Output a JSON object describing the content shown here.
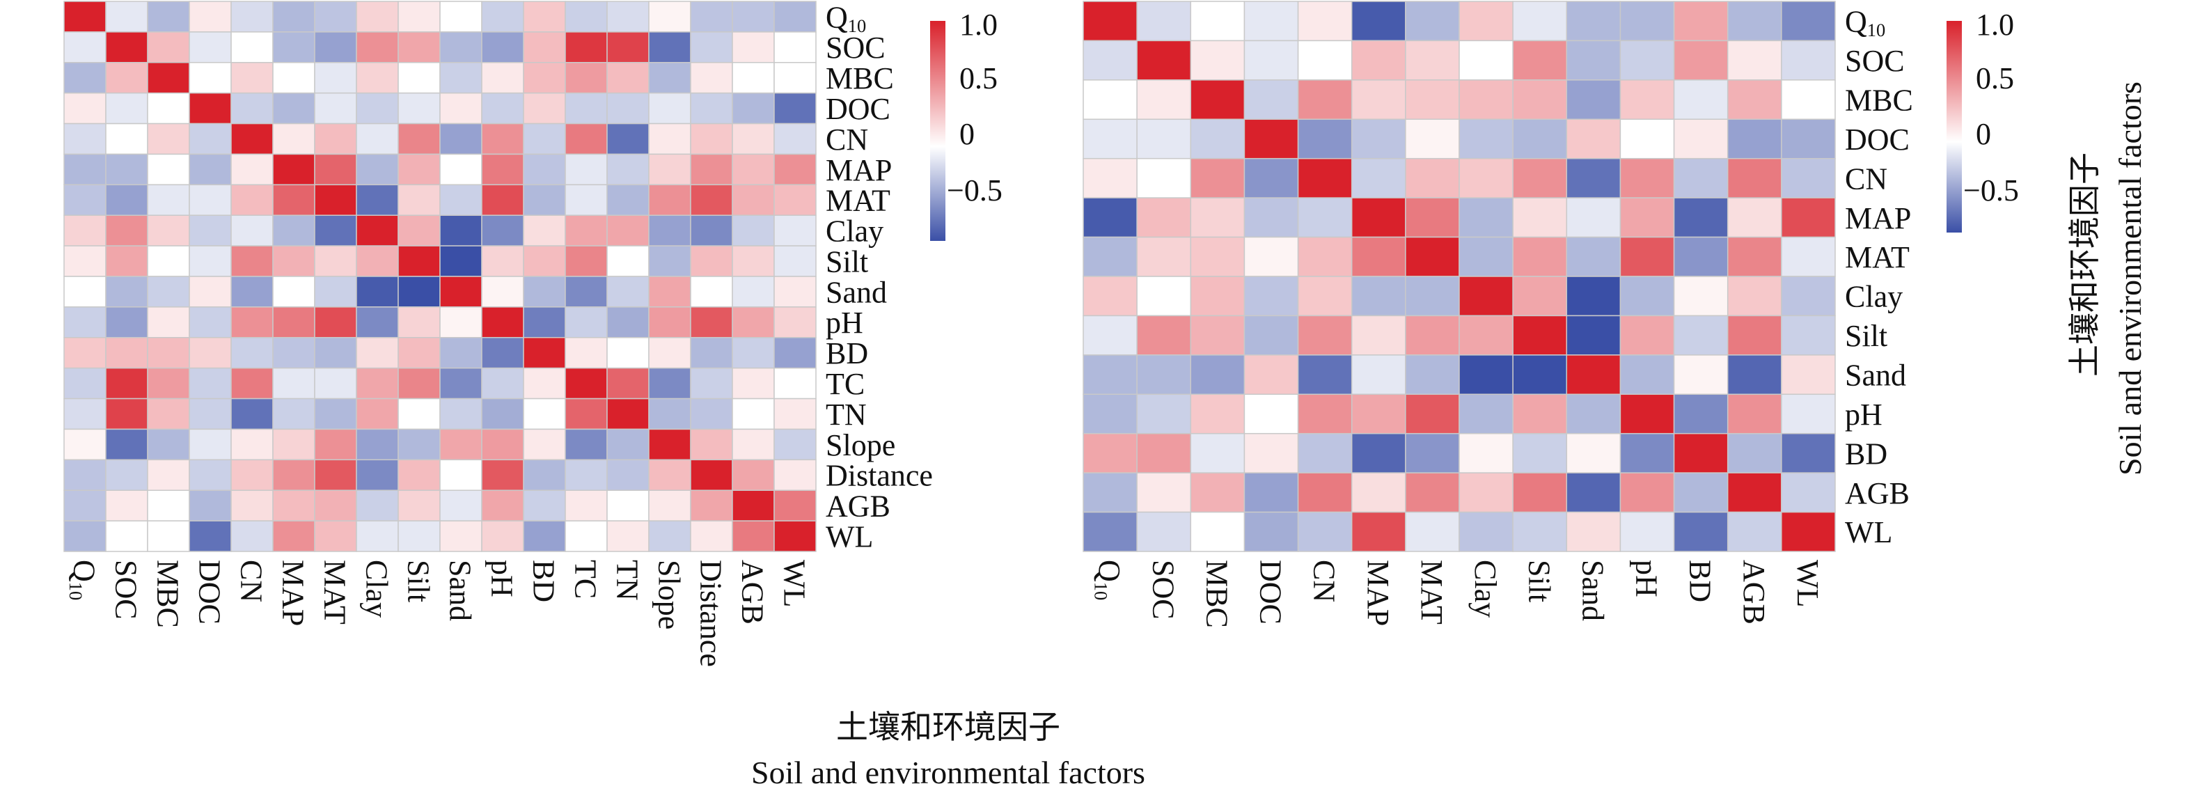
{
  "figure": {
    "xlabel_cn": "土壤和环境因子",
    "xlabel_en": "Soil and environmental factors",
    "side_label_cn": "土壤和环境因子",
    "side_label_en": "Soil and environmental factors"
  },
  "colors": {
    "negative": "#3a4fa6",
    "neutral": "#ffffff",
    "positive": "#d9212b"
  },
  "chart_data": [
    {
      "type": "heatmap",
      "title": "",
      "xlabel": "",
      "ylabel": "",
      "vmin": -0.75,
      "vmax": 1.0,
      "colorbar_ticks": [
        {
          "value": 1.0,
          "label": "1.0"
        },
        {
          "value": 0.5,
          "label": "0.5"
        },
        {
          "value": 0,
          "label": "0"
        },
        {
          "value": -0.5,
          "label": "−0.5"
        }
      ],
      "labels": [
        "Q10",
        "SOC",
        "MBC",
        "DOC",
        "CN",
        "MAP",
        "MAT",
        "Clay",
        "Silt",
        "Sand",
        "pH",
        "BD",
        "TC",
        "TN",
        "Slope",
        "Distance",
        "AGB",
        "WL"
      ],
      "matrix": [
        [
          1.0,
          -0.1,
          -0.3,
          0.1,
          -0.15,
          -0.3,
          -0.25,
          0.2,
          0.1,
          0.0,
          -0.2,
          0.25,
          -0.2,
          -0.15,
          0.05,
          -0.25,
          -0.25,
          -0.3
        ],
        [
          -0.1,
          1.0,
          0.3,
          -0.1,
          0.0,
          -0.3,
          -0.4,
          0.5,
          0.4,
          -0.3,
          -0.4,
          0.3,
          0.9,
          0.85,
          -0.6,
          -0.2,
          0.1,
          0.0
        ],
        [
          -0.3,
          0.3,
          1.0,
          0.0,
          0.2,
          0.0,
          -0.1,
          0.2,
          0.0,
          -0.2,
          0.1,
          0.3,
          0.45,
          0.3,
          -0.3,
          0.1,
          0.0,
          0.0
        ],
        [
          0.1,
          -0.1,
          0.0,
          1.0,
          -0.2,
          -0.3,
          -0.1,
          -0.2,
          -0.1,
          0.1,
          -0.2,
          0.2,
          -0.2,
          -0.2,
          -0.1,
          -0.2,
          -0.3,
          -0.6
        ],
        [
          -0.15,
          0.0,
          0.2,
          -0.2,
          1.0,
          0.1,
          0.3,
          -0.1,
          0.55,
          -0.4,
          0.5,
          -0.2,
          0.6,
          -0.6,
          0.1,
          0.25,
          0.15,
          -0.15
        ],
        [
          -0.3,
          -0.3,
          0.0,
          -0.3,
          0.1,
          1.0,
          0.7,
          -0.3,
          0.35,
          0.0,
          0.6,
          -0.25,
          -0.1,
          -0.2,
          0.2,
          0.5,
          0.3,
          0.5
        ],
        [
          -0.25,
          -0.4,
          -0.1,
          -0.1,
          0.3,
          0.7,
          1.0,
          -0.6,
          0.2,
          -0.2,
          0.8,
          -0.3,
          -0.1,
          -0.3,
          0.5,
          0.75,
          0.35,
          0.3
        ],
        [
          0.2,
          0.5,
          0.2,
          -0.2,
          -0.1,
          -0.3,
          -0.6,
          1.0,
          0.35,
          -0.7,
          -0.5,
          0.15,
          0.4,
          0.4,
          -0.4,
          -0.5,
          -0.2,
          -0.1
        ],
        [
          0.1,
          0.4,
          0.0,
          -0.1,
          0.55,
          0.35,
          0.2,
          0.35,
          1.0,
          -0.85,
          0.2,
          0.3,
          0.55,
          0.0,
          -0.3,
          0.3,
          0.2,
          -0.1
        ],
        [
          0.0,
          -0.3,
          -0.2,
          0.1,
          -0.4,
          0.0,
          -0.2,
          -0.7,
          -0.85,
          1.0,
          0.05,
          -0.3,
          -0.5,
          -0.2,
          0.4,
          0.0,
          -0.1,
          0.1
        ],
        [
          -0.2,
          -0.4,
          0.1,
          -0.2,
          0.5,
          0.6,
          0.8,
          -0.5,
          0.2,
          0.05,
          1.0,
          -0.55,
          -0.2,
          -0.35,
          0.45,
          0.75,
          0.4,
          0.2
        ],
        [
          0.25,
          0.3,
          0.3,
          0.2,
          -0.2,
          -0.25,
          -0.3,
          0.15,
          0.3,
          -0.3,
          -0.55,
          1.0,
          0.1,
          0.0,
          0.1,
          -0.3,
          -0.2,
          -0.4
        ],
        [
          -0.2,
          0.9,
          0.45,
          -0.2,
          0.6,
          -0.1,
          -0.1,
          0.4,
          0.55,
          -0.5,
          -0.2,
          0.1,
          1.0,
          0.7,
          -0.5,
          -0.2,
          0.1,
          0.0
        ],
        [
          -0.15,
          0.85,
          0.3,
          -0.2,
          -0.6,
          -0.2,
          -0.3,
          0.4,
          0.0,
          -0.2,
          -0.35,
          0.0,
          0.7,
          1.0,
          -0.3,
          -0.25,
          0.0,
          0.1
        ],
        [
          0.05,
          -0.6,
          -0.3,
          -0.1,
          0.1,
          0.2,
          0.5,
          -0.4,
          -0.3,
          0.4,
          0.45,
          0.1,
          -0.5,
          -0.3,
          1.0,
          0.3,
          0.1,
          -0.2
        ],
        [
          -0.25,
          -0.2,
          0.1,
          -0.2,
          0.25,
          0.5,
          0.75,
          -0.5,
          0.3,
          0.0,
          0.75,
          -0.3,
          -0.2,
          -0.25,
          0.3,
          1.0,
          0.4,
          0.1
        ],
        [
          -0.25,
          0.1,
          0.0,
          -0.3,
          0.15,
          0.3,
          0.35,
          -0.2,
          0.2,
          -0.1,
          0.4,
          -0.2,
          0.1,
          0.0,
          0.1,
          0.4,
          1.0,
          0.6
        ],
        [
          -0.3,
          0.0,
          0.0,
          -0.6,
          -0.15,
          0.5,
          0.3,
          -0.1,
          -0.1,
          0.1,
          0.2,
          -0.4,
          0.0,
          0.1,
          -0.2,
          0.1,
          0.6,
          1.0
        ]
      ]
    },
    {
      "type": "heatmap",
      "title": "",
      "xlabel": "",
      "ylabel": "",
      "vmin": -0.75,
      "vmax": 1.0,
      "colorbar_ticks": [
        {
          "value": 1.0,
          "label": "1.0"
        },
        {
          "value": 0.5,
          "label": "0.5"
        },
        {
          "value": 0,
          "label": "0"
        },
        {
          "value": -0.5,
          "label": "−0.5"
        }
      ],
      "labels": [
        "Q10",
        "SOC",
        "MBC",
        "DOC",
        "CN",
        "MAP",
        "MAT",
        "Clay",
        "Silt",
        "Sand",
        "pH",
        "BD",
        "AGB",
        "WL"
      ],
      "matrix": [
        [
          1.0,
          -0.15,
          0.0,
          -0.1,
          0.1,
          -0.7,
          -0.3,
          0.25,
          -0.1,
          -0.3,
          -0.3,
          0.4,
          -0.3,
          -0.5
        ],
        [
          -0.15,
          1.0,
          0.1,
          -0.1,
          0.0,
          0.3,
          0.2,
          0.0,
          0.5,
          -0.3,
          -0.2,
          0.45,
          0.1,
          -0.15
        ],
        [
          0.0,
          0.1,
          1.0,
          -0.2,
          0.5,
          0.2,
          0.25,
          0.3,
          0.35,
          -0.4,
          0.25,
          -0.1,
          0.35,
          0.0
        ],
        [
          -0.1,
          -0.1,
          -0.2,
          1.0,
          -0.45,
          -0.25,
          0.05,
          -0.25,
          -0.3,
          0.25,
          0.0,
          0.1,
          -0.4,
          -0.35
        ],
        [
          0.1,
          0.0,
          0.5,
          -0.45,
          1.0,
          -0.2,
          0.3,
          0.25,
          0.5,
          -0.6,
          0.5,
          -0.25,
          0.6,
          -0.25
        ],
        [
          -0.7,
          0.3,
          0.2,
          -0.25,
          -0.2,
          1.0,
          0.6,
          -0.3,
          0.15,
          -0.1,
          0.4,
          -0.65,
          0.15,
          0.8
        ],
        [
          -0.3,
          0.2,
          0.25,
          0.05,
          0.3,
          0.6,
          1.0,
          -0.3,
          0.45,
          -0.3,
          0.75,
          -0.45,
          0.55,
          -0.1
        ],
        [
          0.25,
          0.0,
          0.3,
          -0.25,
          0.25,
          -0.3,
          -0.3,
          1.0,
          0.4,
          -0.75,
          -0.3,
          0.05,
          0.25,
          -0.25
        ],
        [
          -0.1,
          0.5,
          0.35,
          -0.3,
          0.5,
          0.15,
          0.45,
          0.4,
          1.0,
          -0.8,
          0.4,
          -0.2,
          0.6,
          -0.2
        ],
        [
          -0.3,
          -0.3,
          -0.4,
          0.25,
          -0.6,
          -0.1,
          -0.3,
          -0.75,
          -0.8,
          1.0,
          -0.3,
          0.05,
          -0.65,
          0.15
        ],
        [
          -0.3,
          -0.2,
          0.25,
          0.0,
          0.5,
          0.4,
          0.75,
          -0.3,
          0.4,
          -0.3,
          1.0,
          -0.5,
          0.5,
          -0.1
        ],
        [
          0.4,
          0.45,
          -0.1,
          0.1,
          -0.25,
          -0.65,
          -0.45,
          0.05,
          -0.2,
          0.05,
          -0.5,
          1.0,
          -0.3,
          -0.6
        ],
        [
          -0.3,
          0.1,
          0.35,
          -0.4,
          0.6,
          0.15,
          0.55,
          0.25,
          0.6,
          -0.65,
          0.5,
          -0.3,
          1.0,
          -0.2
        ],
        [
          -0.5,
          -0.15,
          0.0,
          -0.35,
          -0.25,
          0.8,
          -0.1,
          -0.25,
          -0.2,
          0.15,
          -0.1,
          -0.6,
          -0.2,
          1.0
        ]
      ]
    }
  ]
}
